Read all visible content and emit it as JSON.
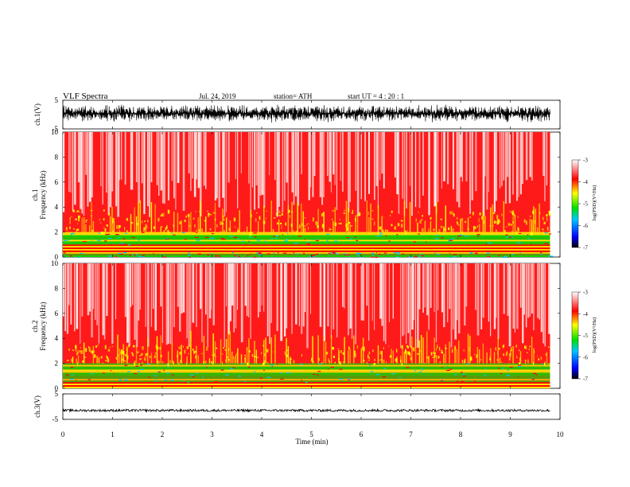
{
  "header": {
    "title": "VLF  Spectra",
    "date": "Jul.  24, 2019",
    "station": "station= ATH",
    "start_ut": "start  UT  =   4  : 20 : 1"
  },
  "colors": {
    "waveform": "#000000",
    "spectrogram_scale": [
      "#000000",
      "#0000ff",
      "#00c8ff",
      "#00e000",
      "#ffff00",
      "#ff0000",
      "#ffffff"
    ]
  },
  "chart_data": [
    {
      "type": "line",
      "name": "ch1-waveform",
      "ylabel": "ch.1(V)",
      "xlim": [
        0,
        10
      ],
      "ylim": [
        -5,
        5
      ],
      "yticks": [
        "5",
        "-5"
      ],
      "trace_extent_min": 9.8,
      "amplitude_range": [
        -3.2,
        3.2
      ]
    },
    {
      "type": "heatmap",
      "name": "ch1-spectrogram",
      "ylabel_channel": "ch.1",
      "ylabel": "Frequency  (kHz)",
      "xlim": [
        0,
        9.8
      ],
      "ylim": [
        0,
        10
      ],
      "yticks": [
        "0",
        "2",
        "4",
        "6",
        "8",
        "10"
      ],
      "colorbar": {
        "label": "log(PSD)(V²/Hz)",
        "ticks": [
          "-3",
          "-4",
          "-5",
          "-6",
          "-7"
        ],
        "range": [
          -7,
          -3
        ]
      },
      "bands": [
        {
          "from_khz": 0,
          "to_khz": 0.4,
          "level": "green"
        },
        {
          "from_khz": 0.4,
          "to_khz": 1.0,
          "level": "yellow-red lines"
        },
        {
          "from_khz": 1.0,
          "to_khz": 2.0,
          "level": "green"
        },
        {
          "from_khz": 2.0,
          "to_khz": 3.8,
          "level": "red with yellow"
        },
        {
          "from_khz": 3.8,
          "to_khz": 10,
          "level": "red to white"
        }
      ]
    },
    {
      "type": "heatmap",
      "name": "ch2-spectrogram",
      "ylabel_channel": "ch.2",
      "ylabel": "Frequency  (kHz)",
      "xlim": [
        0,
        9.8
      ],
      "ylim": [
        0,
        10
      ],
      "yticks": [
        "0",
        "2",
        "4",
        "6",
        "8",
        "10"
      ],
      "colorbar": {
        "label": "log(PSD)(V²/Hz)",
        "ticks": [
          "-3",
          "-4",
          "-5",
          "-6",
          "-7"
        ],
        "range": [
          -7,
          -3
        ]
      },
      "bands": [
        {
          "from_khz": 0,
          "to_khz": 0.5,
          "level": "yellow-red lines"
        },
        {
          "from_khz": 0.5,
          "to_khz": 2.0,
          "level": "green-yellow"
        },
        {
          "from_khz": 2.0,
          "to_khz": 3.5,
          "level": "red with yellow"
        },
        {
          "from_khz": 3.5,
          "to_khz": 10,
          "level": "red to white"
        }
      ]
    },
    {
      "type": "line",
      "name": "ch3-waveform",
      "ylabel": "ch.3(V)",
      "xlim": [
        0,
        10
      ],
      "ylim": [
        -5,
        5
      ],
      "yticks": [
        "5",
        "-5"
      ],
      "baseline_v": -1.5
    }
  ],
  "xaxis": {
    "label": "Time  (min)",
    "ticks": [
      "0",
      "1",
      "2",
      "3",
      "4",
      "5",
      "6",
      "7",
      "8",
      "9",
      "10"
    ],
    "range": [
      0,
      10
    ]
  }
}
